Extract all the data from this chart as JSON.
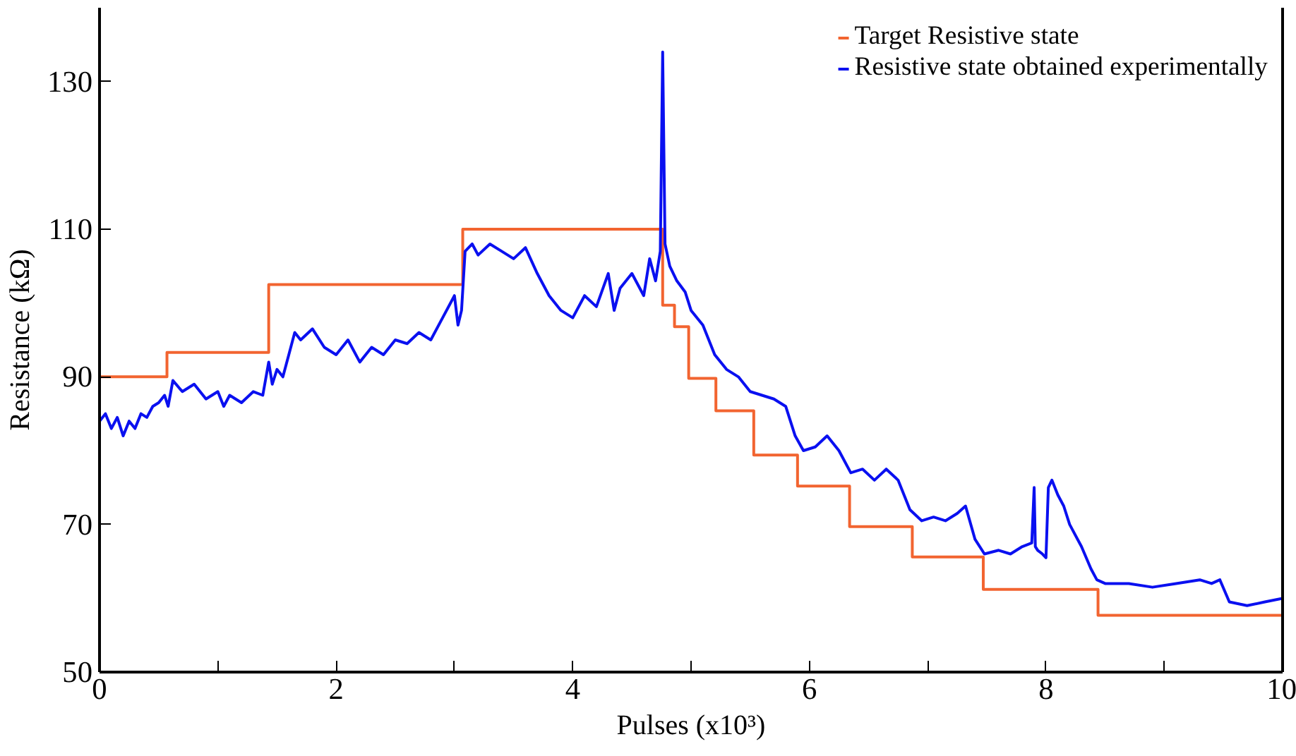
{
  "chart_data": {
    "type": "line",
    "xlabel": "Pulses (x10³)",
    "ylabel": "Resistance (kΩ)",
    "xlim": [
      0,
      10
    ],
    "ylim": [
      50,
      140
    ],
    "xticks": [
      0,
      {
        "value": 1,
        "label": null
      },
      2,
      {
        "value": 3,
        "label": null
      },
      4,
      {
        "value": 5,
        "label": null
      },
      6,
      {
        "value": 7,
        "label": null
      },
      8,
      {
        "value": 9,
        "label": null
      },
      10
    ],
    "yticks": [
      50,
      70,
      90,
      110,
      130
    ],
    "grid": false,
    "legend": "top right",
    "series": [
      {
        "name": "Target Resistive state",
        "type": "step",
        "color": "#f26430",
        "x": [
          0,
          0.57,
          1.43,
          3.07,
          4.76,
          4.86,
          4.98,
          5.21,
          5.53,
          5.9,
          6.34,
          6.87,
          7.47,
          8.44,
          10
        ],
        "values": [
          90,
          93.3,
          102.5,
          110,
          99.7,
          96.8,
          89.8,
          85.4,
          79.4,
          75.2,
          69.7,
          65.6,
          61.2,
          57.7,
          57.7
        ]
      },
      {
        "name": "Resistive state obtained experimentally",
        "color": "#0a10f0",
        "x": [
          0,
          0.05,
          0.1,
          0.15,
          0.2,
          0.25,
          0.3,
          0.35,
          0.4,
          0.45,
          0.5,
          0.55,
          0.58,
          0.62,
          0.7,
          0.8,
          0.9,
          1.0,
          1.05,
          1.1,
          1.2,
          1.3,
          1.38,
          1.43,
          1.46,
          1.5,
          1.55,
          1.6,
          1.65,
          1.7,
          1.8,
          1.9,
          2.0,
          2.1,
          2.2,
          2.3,
          2.4,
          2.5,
          2.6,
          2.7,
          2.8,
          2.9,
          3.0,
          3.03,
          3.06,
          3.09,
          3.15,
          3.2,
          3.3,
          3.4,
          3.5,
          3.6,
          3.7,
          3.8,
          3.9,
          4.0,
          4.1,
          4.2,
          4.3,
          4.35,
          4.4,
          4.5,
          4.6,
          4.65,
          4.7,
          4.74,
          4.76,
          4.78,
          4.82,
          4.88,
          4.95,
          5.0,
          5.1,
          5.2,
          5.3,
          5.4,
          5.5,
          5.6,
          5.7,
          5.8,
          5.88,
          5.95,
          6.05,
          6.15,
          6.25,
          6.35,
          6.45,
          6.55,
          6.65,
          6.75,
          6.85,
          6.95,
          7.05,
          7.15,
          7.25,
          7.32,
          7.4,
          7.48,
          7.6,
          7.7,
          7.8,
          7.88,
          7.9,
          7.91,
          7.93,
          7.97,
          8.0,
          8.02,
          8.05,
          8.1,
          8.15,
          8.2,
          8.3,
          8.38,
          8.43,
          8.5,
          8.7,
          8.9,
          9.1,
          9.3,
          9.4,
          9.47,
          9.55,
          9.7,
          9.85,
          10
        ],
        "values": [
          84,
          85,
          83,
          84.5,
          82,
          84,
          83,
          85,
          84.5,
          86,
          86.5,
          87.5,
          86,
          89.5,
          88,
          89,
          87,
          88,
          86,
          87.5,
          86.5,
          88,
          87.5,
          92,
          89,
          91,
          90,
          93,
          96,
          95,
          96.5,
          94,
          93,
          95,
          92,
          94,
          93,
          95,
          94.5,
          96,
          95,
          98,
          101,
          97,
          99,
          107,
          108,
          106.5,
          108,
          107,
          106,
          107.5,
          104,
          101,
          99,
          98,
          101,
          99.5,
          104,
          99,
          102,
          104,
          101,
          106,
          103,
          107,
          134,
          108,
          105,
          103,
          101.5,
          99,
          97,
          93,
          91,
          90,
          88,
          87.5,
          87,
          86,
          82,
          80,
          80.5,
          82,
          80,
          77,
          77.5,
          76,
          77.5,
          76,
          72,
          70.5,
          71,
          70.5,
          71.5,
          72.5,
          68,
          66,
          66.5,
          66,
          67,
          67.5,
          75,
          67,
          66.5,
          66,
          65.5,
          75,
          76,
          74,
          72.5,
          70,
          67,
          64,
          62.5,
          62,
          62,
          61.5,
          62,
          62.5,
          62,
          62.5,
          59.5,
          59,
          59.5,
          60
        ]
      }
    ]
  }
}
